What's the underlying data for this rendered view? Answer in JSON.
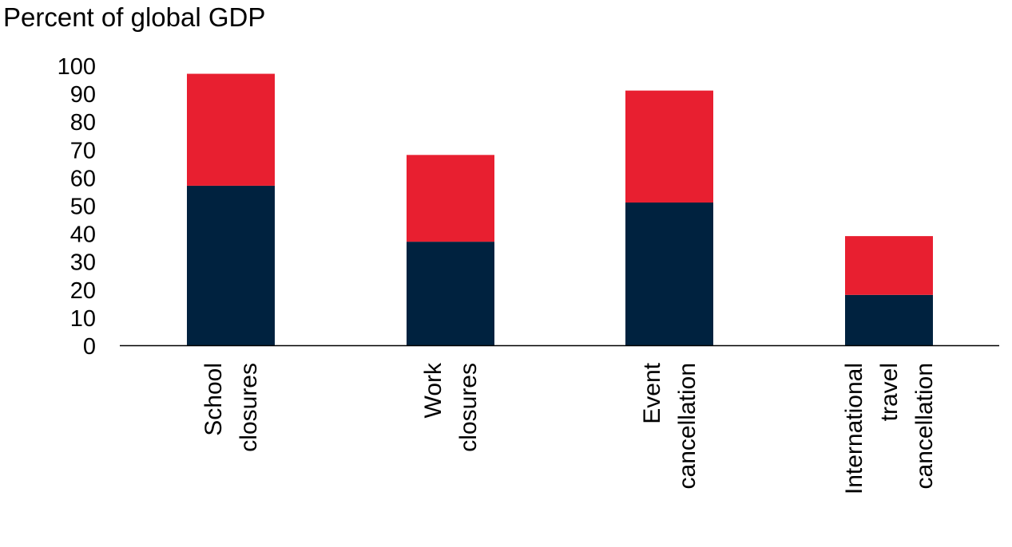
{
  "colors": {
    "primary_segment": "#00223f",
    "secondary_segment": "#e81f30",
    "axis": "#000000",
    "background": "#ffffff"
  },
  "chart_data": {
    "type": "bar",
    "stacked": true,
    "title": "Percent of global GDP",
    "xlabel": "",
    "ylabel": "",
    "ylim": [
      0,
      100
    ],
    "yticks": [
      0,
      10,
      20,
      30,
      40,
      50,
      60,
      70,
      80,
      90,
      100
    ],
    "grid": false,
    "legend": "none",
    "categories": [
      [
        "School",
        "closures"
      ],
      [
        "Work",
        "closures"
      ],
      [
        "Event",
        "cancellation"
      ],
      [
        "International",
        "travel",
        "cancellation"
      ]
    ],
    "series": [
      {
        "color": "#00223f",
        "values": [
          57,
          37,
          51,
          18
        ]
      },
      {
        "color": "#e81f30",
        "values": [
          40,
          31,
          40,
          21
        ]
      }
    ]
  }
}
